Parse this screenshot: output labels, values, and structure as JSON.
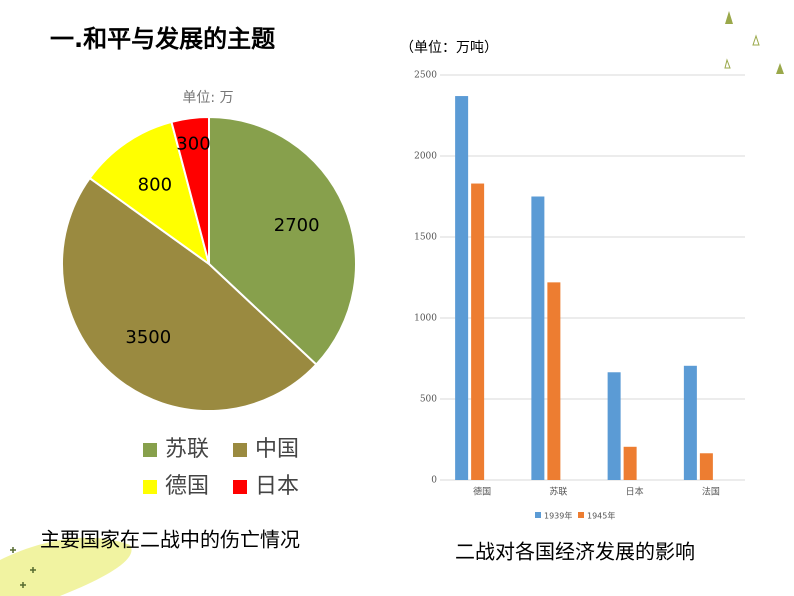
{
  "slide_title": "一.和平与发展的主题",
  "captions": [
    "主要国家在二战中的伤亡情况",
    "二战对各国经济发展的影响"
  ],
  "chart_data": [
    {
      "type": "pie",
      "subtitle": "单位: 万",
      "categories": [
        "苏联",
        "中国",
        "德国",
        "日本"
      ],
      "values": [
        2700,
        3500,
        800,
        300
      ],
      "colors": [
        "#87a04c",
        "#9a8a40",
        "#ffff00",
        "#ff0000"
      ],
      "legend": "bottom"
    },
    {
      "type": "bar",
      "title": "（单位：万吨）",
      "categories": [
        "德国",
        "苏联",
        "日本",
        "法国"
      ],
      "series": [
        {
          "name": "1939年",
          "color": "#5b9bd5",
          "values": [
            2370,
            1750,
            665,
            705
          ]
        },
        {
          "name": "1945年",
          "color": "#ed7d31",
          "values": [
            1830,
            1220,
            205,
            165
          ]
        }
      ],
      "ylim": [
        0,
        2500
      ],
      "yticks": [
        0,
        500,
        1000,
        1500,
        2000,
        2500
      ],
      "grid": true,
      "legend": "bottom"
    }
  ]
}
